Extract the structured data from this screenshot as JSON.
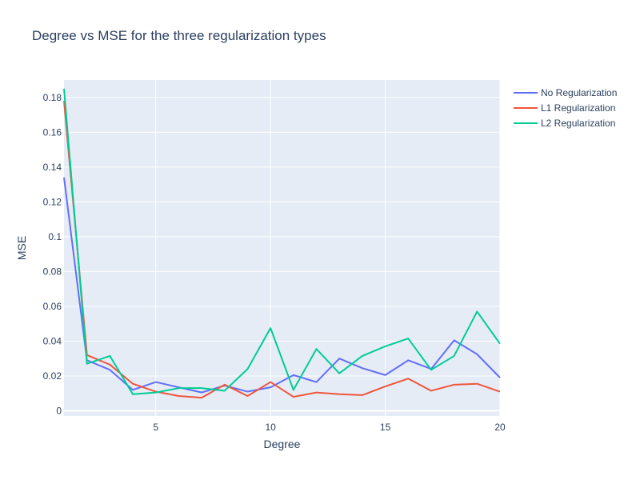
{
  "chart_data": {
    "type": "line",
    "title": "Degree vs MSE for the three regularization types",
    "xlabel": "Degree",
    "ylabel": "MSE",
    "xlim": [
      1,
      20
    ],
    "ylim": [
      -0.003,
      0.19
    ],
    "xticks": [
      5,
      10,
      15,
      20
    ],
    "yticks": [
      0,
      0.02,
      0.04,
      0.06,
      0.08,
      0.1,
      0.12,
      0.14,
      0.16,
      0.18
    ],
    "grid": true,
    "legend_position": "top-right",
    "x": [
      1,
      2,
      3,
      4,
      5,
      6,
      7,
      8,
      9,
      10,
      11,
      12,
      13,
      14,
      15,
      16,
      17,
      18,
      19,
      20
    ],
    "series": [
      {
        "name": "No Regularization",
        "color": "#636efa",
        "values": [
          0.134,
          0.029,
          0.0235,
          0.012,
          0.0165,
          0.0135,
          0.0105,
          0.0145,
          0.011,
          0.0135,
          0.0205,
          0.0165,
          0.03,
          0.0245,
          0.0205,
          0.029,
          0.024,
          0.0405,
          0.0325,
          0.019
        ]
      },
      {
        "name": "L1 Regularization",
        "color": "#ef553b",
        "values": [
          0.178,
          0.032,
          0.0265,
          0.0155,
          0.011,
          0.0085,
          0.0075,
          0.015,
          0.0085,
          0.0165,
          0.008,
          0.0105,
          0.0095,
          0.009,
          0.014,
          0.0185,
          0.0115,
          0.015,
          0.0155,
          0.011
        ]
      },
      {
        "name": "L2 Regularization",
        "color": "#00cc96",
        "values": [
          0.185,
          0.027,
          0.0315,
          0.0095,
          0.0105,
          0.013,
          0.013,
          0.0115,
          0.024,
          0.0475,
          0.012,
          0.0355,
          0.0215,
          0.0315,
          0.037,
          0.0415,
          0.0235,
          0.0315,
          0.057,
          0.0385
        ]
      }
    ]
  }
}
